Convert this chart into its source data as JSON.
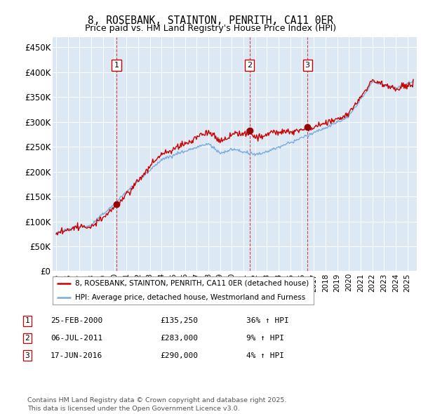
{
  "title": "8, ROSEBANK, STAINTON, PENRITH, CA11 0ER",
  "subtitle": "Price paid vs. HM Land Registry's House Price Index (HPI)",
  "ylim": [
    0,
    470000
  ],
  "yticks": [
    0,
    50000,
    100000,
    150000,
    200000,
    250000,
    300000,
    350000,
    400000,
    450000
  ],
  "ytick_labels": [
    "£0",
    "£50K",
    "£100K",
    "£150K",
    "£200K",
    "£250K",
    "£300K",
    "£350K",
    "£400K",
    "£450K"
  ],
  "plot_bg_color": "#dce9f5",
  "legend_entries": [
    "8, ROSEBANK, STAINTON, PENRITH, CA11 0ER (detached house)",
    "HPI: Average price, detached house, Westmorland and Furness"
  ],
  "sale_color": "#cc0000",
  "hpi_color": "#7aabdb",
  "annotation_dates": [
    "25-FEB-2000",
    "06-JUL-2011",
    "17-JUN-2016"
  ],
  "annotation_prices": [
    "£135,250",
    "£283,000",
    "£290,000"
  ],
  "annotation_hpi": [
    "36% ↑ HPI",
    "9% ↑ HPI",
    "4% ↑ HPI"
  ],
  "sale_years": [
    2000.15,
    2011.51,
    2016.46
  ],
  "sale_values": [
    135250,
    283000,
    290000
  ],
  "footer": "Contains HM Land Registry data © Crown copyright and database right 2025.\nThis data is licensed under the Open Government Licence v3.0.",
  "xlim_left": 1994.7,
  "xlim_right": 2025.8
}
